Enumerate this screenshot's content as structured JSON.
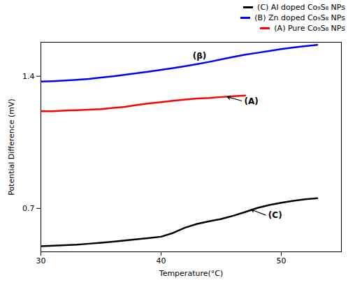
{
  "chart_data": {
    "type": "line",
    "xlabel": "Temperature(°C)",
    "ylabel": "Potential Difference (mV)",
    "xlim": [
      30,
      55
    ],
    "ylim": [
      0.47,
      1.58
    ],
    "xticks": [
      30,
      40,
      50
    ],
    "yticks": [
      0.7,
      1.4
    ],
    "legend": "upper right",
    "series": [
      {
        "name": "(C) Al doped Co₉S₈ NPs",
        "color": "black",
        "x": [
          30,
          31,
          32,
          33,
          34,
          35,
          36,
          37,
          38,
          39,
          40,
          41,
          42,
          43,
          44,
          45,
          46,
          47,
          48,
          49,
          50,
          51,
          52,
          53
        ],
        "values": [
          0.5,
          0.502,
          0.505,
          0.508,
          0.513,
          0.518,
          0.524,
          0.53,
          0.537,
          0.543,
          0.55,
          0.57,
          0.598,
          0.618,
          0.632,
          0.644,
          0.661,
          0.681,
          0.702,
          0.718,
          0.73,
          0.74,
          0.748,
          0.754
        ]
      },
      {
        "name": "(B) Zn doped Co₉S₈ NPs",
        "color": "blue",
        "x": [
          30,
          31,
          32,
          33,
          34,
          35,
          36,
          37,
          38,
          39,
          40,
          41,
          42,
          43,
          44,
          45,
          46,
          47,
          48,
          49,
          50,
          51,
          52,
          53
        ],
        "values": [
          1.372,
          1.374,
          1.377,
          1.381,
          1.386,
          1.393,
          1.4,
          1.408,
          1.416,
          1.425,
          1.434,
          1.443,
          1.453,
          1.464,
          1.476,
          1.489,
          1.502,
          1.514,
          1.524,
          1.534,
          1.544,
          1.552,
          1.56,
          1.566
        ]
      },
      {
        "name": "(A) Pure Co₉S₈ NPs",
        "color": "red",
        "x": [
          30,
          31,
          32,
          33,
          34,
          35,
          36,
          37,
          38,
          39,
          40,
          41,
          42,
          43,
          44,
          45,
          46,
          47
        ],
        "values": [
          1.215,
          1.215,
          1.218,
          1.22,
          1.223,
          1.226,
          1.232,
          1.238,
          1.248,
          1.256,
          1.263,
          1.27,
          1.277,
          1.282,
          1.285,
          1.29,
          1.294,
          1.298
        ]
      }
    ],
    "annotations": [
      {
        "text": "(A)",
        "xy": [
          45.5,
          1.291
        ],
        "xytext": [
          46.8,
          1.268
        ],
        "arrow": true
      },
      {
        "text": "(β)",
        "xy": [
          43.5,
          1.465
        ],
        "xytext": [
          43.2,
          1.492
        ],
        "arrow": false
      },
      {
        "text": "(C)",
        "xy": [
          47.5,
          0.694
        ],
        "xytext": [
          48.8,
          0.662
        ],
        "arrow": true
      }
    ]
  }
}
